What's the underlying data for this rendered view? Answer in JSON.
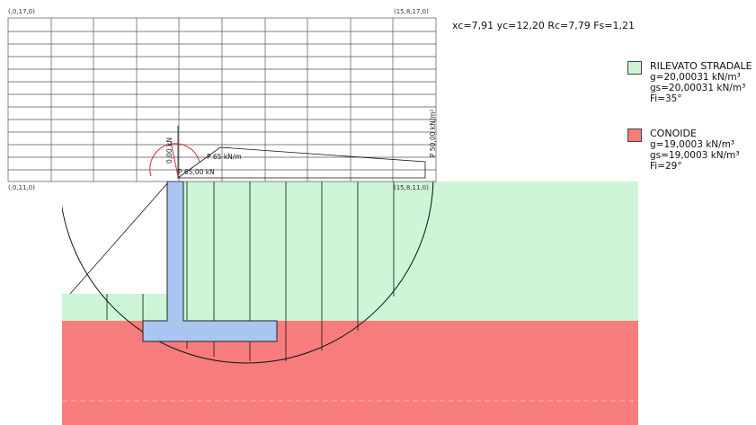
{
  "grid": {
    "corner_tl": "(,0,17,0)",
    "corner_tr": "(15,8,17,0)",
    "corner_bl": "(,0,11,0)",
    "corner_br": "(15,8,11,0)"
  },
  "circle_info": "xc=7,91 yc=12,20 Rc=7,79 Fs=1,21",
  "loads": {
    "vertical_kn": "0,00 kN",
    "distributed": "P 65 kN/m",
    "point": "P 65,00 kN",
    "surcharge": "P 50,00 kN/m²"
  },
  "legend": [
    {
      "name": "RILEVATO STRADALE",
      "g": "g=20,00031 kN/m³",
      "gs": "gs=20,00031 kN/m³",
      "fi": "Fi=35°",
      "color": "#cdf5d6"
    },
    {
      "name": "CONOIDE",
      "g": "g=19,0003 kN/m³",
      "gs": "gs=19,0003 kN/m³",
      "fi": "Fi=29°",
      "color": "#f77d7d"
    }
  ],
  "colors": {
    "wall": "#a9c5f0",
    "grid_line": "#555555"
  }
}
